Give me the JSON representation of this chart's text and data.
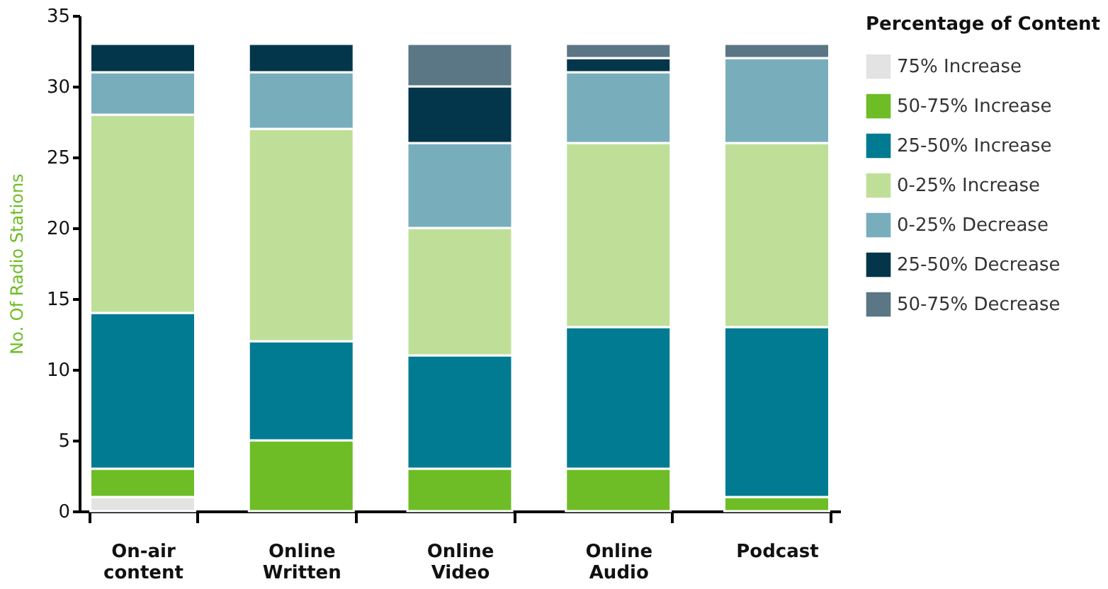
{
  "chart_data": {
    "type": "bar",
    "stacked": true,
    "ylabel": "No. Of Radio Stations",
    "legend_title": "Percentage of Content",
    "legend": "right",
    "categories": [
      "On-air content",
      "Online Written",
      "Online Video",
      "Online Audio",
      "Podcast"
    ],
    "ylim": [
      0,
      35
    ],
    "yticks": [
      0,
      5,
      10,
      15,
      20,
      25,
      30,
      35
    ],
    "grid": false,
    "series": [
      {
        "name": "75% Increase",
        "color": "#e3e3e3",
        "values": [
          1,
          0,
          0,
          0,
          0
        ]
      },
      {
        "name": "50-75% Increase",
        "color": "#6ebd27",
        "values": [
          2,
          5,
          3,
          3,
          1
        ]
      },
      {
        "name": "25-50% Increase",
        "color": "#017b91",
        "values": [
          11,
          7,
          8,
          10,
          12
        ]
      },
      {
        "name": "0-25% Increase",
        "color": "#bfdf98",
        "values": [
          14,
          15,
          9,
          13,
          13
        ]
      },
      {
        "name": "0-25% Decrease",
        "color": "#78aebb",
        "values": [
          3,
          4,
          6,
          5,
          6
        ]
      },
      {
        "name": "25-50% Decrease",
        "color": "#03364a",
        "values": [
          2,
          2,
          4,
          1,
          0
        ]
      },
      {
        "name": "50-75% Decrease",
        "color": "#5b7684",
        "values": [
          0,
          0,
          3,
          1,
          1
        ]
      }
    ]
  }
}
